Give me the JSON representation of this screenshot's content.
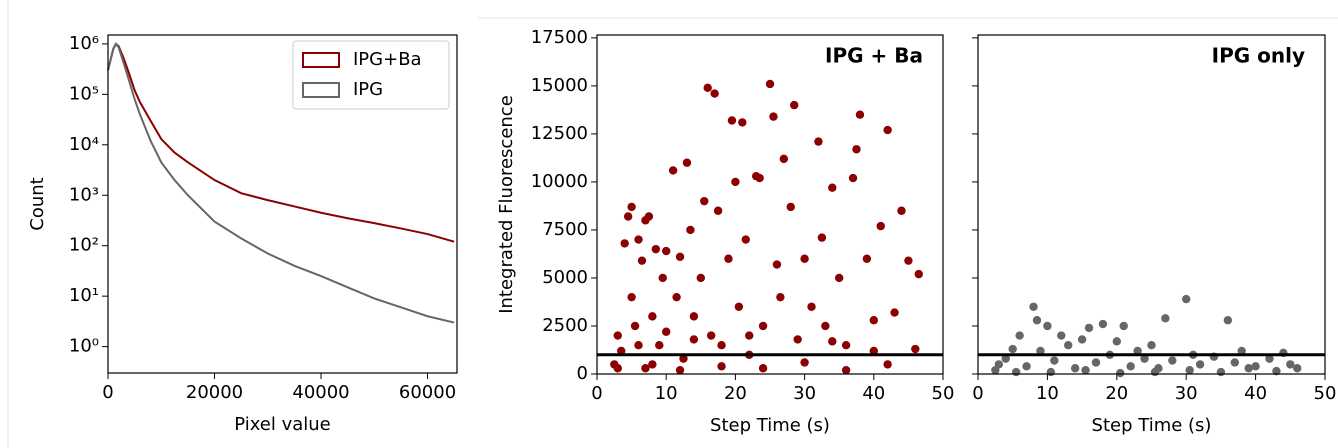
{
  "chart_data": [
    {
      "type": "line",
      "xlabel": "Pixel value",
      "ylabel": "Count",
      "yscale": "log",
      "legend": "upper right",
      "xlim": [
        0,
        65535
      ],
      "xticks": [
        0,
        20000,
        40000,
        60000
      ],
      "ylim": [
        0.3,
        1500000
      ],
      "yticks": [
        {
          "value": 1,
          "label": "10⁰"
        },
        {
          "value": 10,
          "label": "10¹"
        },
        {
          "value": 100,
          "label": "10²"
        },
        {
          "value": 1000,
          "label": "10³"
        },
        {
          "value": 10000,
          "label": "10⁴"
        },
        {
          "value": 100000,
          "label": "10⁵"
        },
        {
          "value": 1000000,
          "label": "10⁶"
        }
      ],
      "x": [
        0,
        1000,
        1500,
        2000,
        3000,
        4000,
        5000,
        6000,
        8000,
        10000,
        12500,
        15000,
        20000,
        25000,
        30000,
        35000,
        40000,
        45000,
        50000,
        55000,
        60000,
        65000
      ],
      "series": [
        {
          "name": "IPG+Ba",
          "color": "#8b0000",
          "values": [
            300000,
            800000,
            1000000,
            900000,
            500000,
            250000,
            120000,
            70000,
            30000,
            13000,
            7000,
            4500,
            2000,
            1100,
            800,
            600,
            450,
            350,
            280,
            220,
            170,
            120
          ]
        },
        {
          "name": "IPG",
          "color": "#666666",
          "values": [
            300000,
            800000,
            1000000,
            850000,
            400000,
            180000,
            80000,
            40000,
            12000,
            4500,
            2000,
            1000,
            300,
            140,
            70,
            40,
            25,
            15,
            9,
            6,
            4,
            3
          ]
        }
      ]
    },
    {
      "type": "scatter",
      "annotation": "IPG + Ba",
      "xlabel": "Step Time (s)",
      "ylabel": "Integrated Fluorescence",
      "color": "#8b0000",
      "xlim": [
        0,
        50
      ],
      "xticks": [
        0,
        10,
        20,
        30,
        40,
        50
      ],
      "ylim": [
        0,
        17650
      ],
      "yticks": [
        0,
        2500,
        5000,
        7500,
        10000,
        12500,
        15000,
        17500
      ],
      "hline": 1000,
      "x": [
        2.5,
        3,
        3.5,
        4,
        4.5,
        5,
        5,
        5.5,
        6,
        6.5,
        7,
        7,
        7.5,
        8,
        8.5,
        9,
        9.5,
        10,
        10,
        11,
        11.5,
        12,
        12.5,
        13,
        13.5,
        14,
        15,
        15.5,
        16,
        16.5,
        17,
        17.5,
        18,
        19,
        19.5,
        20,
        20.5,
        21,
        21.5,
        22,
        23,
        23.5,
        24,
        25,
        25.5,
        26,
        26.5,
        27,
        28,
        28.5,
        29,
        30,
        31,
        32,
        32.5,
        33,
        34,
        35,
        36,
        37,
        37.5,
        38,
        39,
        40,
        41,
        42,
        43,
        44,
        45,
        46,
        46.5,
        3,
        8,
        12,
        18,
        24,
        30,
        36,
        42,
        6,
        14,
        22,
        34,
        40
      ],
      "values": [
        500,
        2000,
        1200,
        6800,
        8200,
        8700,
        4000,
        2500,
        7000,
        5900,
        8000,
        300,
        8200,
        3000,
        6500,
        1500,
        5000,
        6400,
        2200,
        10600,
        4000,
        6100,
        800,
        11000,
        7500,
        3000,
        5000,
        9000,
        14900,
        2000,
        14600,
        8500,
        1500,
        6000,
        13200,
        10000,
        3500,
        13100,
        7000,
        1000,
        10300,
        10200,
        2500,
        15100,
        13400,
        5700,
        4000,
        11200,
        8700,
        14000,
        1800,
        6000,
        3500,
        12100,
        7100,
        2500,
        9700,
        5000,
        1500,
        10200,
        11700,
        13500,
        6000,
        2800,
        7700,
        12700,
        3200,
        8500,
        5900,
        1300,
        5200,
        300,
        500,
        200,
        400,
        300,
        600,
        200,
        500,
        1500,
        1800,
        2000,
        1700,
        1200
      ]
    },
    {
      "type": "scatter",
      "annotation": "IPG only",
      "xlabel": "Step Time (s)",
      "color": "#666666",
      "xlim": [
        0,
        50
      ],
      "xticks": [
        0,
        10,
        20,
        30,
        40,
        50
      ],
      "ylim": [
        0,
        17650
      ],
      "yticks": [
        0,
        2500,
        5000,
        7500,
        10000,
        12500,
        15000,
        17500
      ],
      "yticklabels": false,
      "hline": 1000,
      "x": [
        3,
        4,
        5,
        6,
        7,
        8,
        8.5,
        9,
        10,
        11,
        12,
        13,
        14,
        15,
        16,
        17,
        18,
        19,
        20,
        21,
        22,
        23,
        24,
        25,
        26,
        27,
        28,
        30,
        31,
        32,
        34,
        36,
        37,
        38,
        40,
        42,
        44,
        46,
        2.5,
        5.5,
        10.5,
        15.5,
        20.5,
        25.5,
        30.5,
        35,
        39,
        43,
        45
      ],
      "values": [
        500,
        800,
        1300,
        2000,
        400,
        3500,
        2800,
        1200,
        2500,
        700,
        2000,
        1500,
        300,
        1800,
        2400,
        600,
        2600,
        1000,
        1700,
        2500,
        400,
        1200,
        800,
        1500,
        300,
        2900,
        700,
        3900,
        1000,
        500,
        900,
        2800,
        600,
        1200,
        400,
        800,
        1100,
        300,
        200,
        100,
        100,
        200,
        50,
        100,
        200,
        100,
        300,
        150,
        500
      ]
    }
  ]
}
